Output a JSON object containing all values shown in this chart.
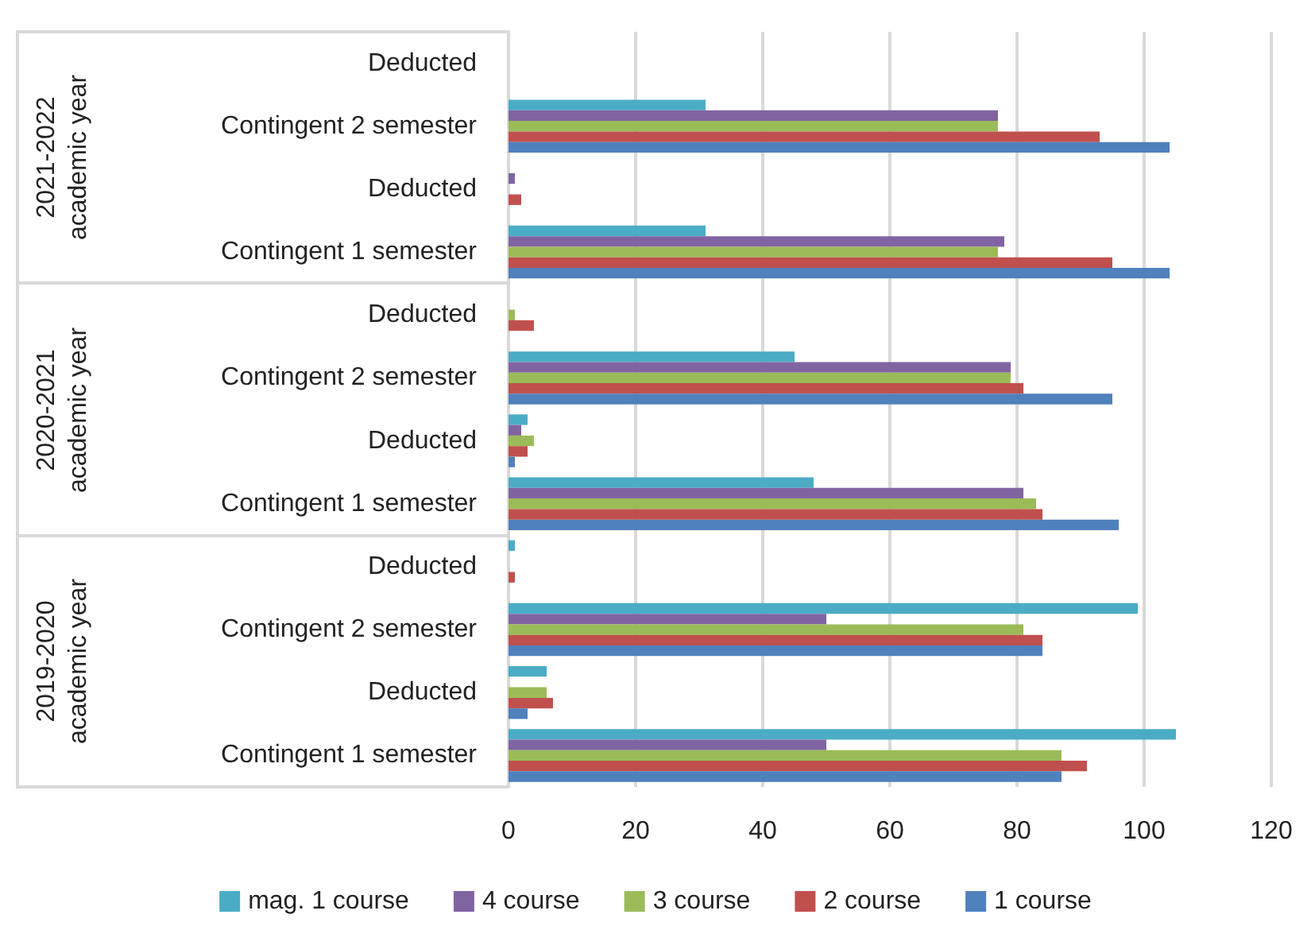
{
  "chart_data": {
    "type": "bar",
    "orientation": "horizontal",
    "categories": [
      "Deducted",
      "Contingent 2 semester",
      "Deducted",
      "Contingent 1 semester",
      "Deducted",
      "Contingent 2 semester",
      "Deducted",
      "Contingent 1 semester",
      "Deducted",
      "Contingent 2 semester",
      "Deducted",
      "Contingent 1 semester"
    ],
    "series": [
      {
        "name": "mag. 1 course",
        "color": "#4bacc6",
        "values": [
          0,
          31,
          0,
          31,
          0,
          45,
          3,
          48,
          1,
          99,
          6,
          105
        ]
      },
      {
        "name": "4 course",
        "color": "#8064a2",
        "values": [
          0,
          77,
          1,
          78,
          0,
          79,
          2,
          81,
          0,
          50,
          0,
          50
        ]
      },
      {
        "name": "3 course",
        "color": "#9bbb59",
        "values": [
          0,
          77,
          0,
          77,
          1,
          79,
          4,
          83,
          0,
          81,
          6,
          87
        ]
      },
      {
        "name": "2 course",
        "color": "#c0504d",
        "values": [
          0,
          93,
          2,
          95,
          4,
          81,
          3,
          84,
          1,
          84,
          7,
          91
        ]
      },
      {
        "name": "1 course",
        "color": "#4f81bd",
        "values": [
          0,
          104,
          0,
          104,
          0,
          95,
          1,
          96,
          0,
          84,
          3,
          87
        ]
      }
    ],
    "annotations": [
      "2021-2022 academic year",
      "2020-2021 academic year",
      "2019-2020 academic year"
    ],
    "xlim": [
      0,
      120
    ],
    "xticks": [
      0,
      20,
      40,
      60,
      80,
      100,
      120
    ],
    "grid": "x",
    "legend": "bottom"
  }
}
